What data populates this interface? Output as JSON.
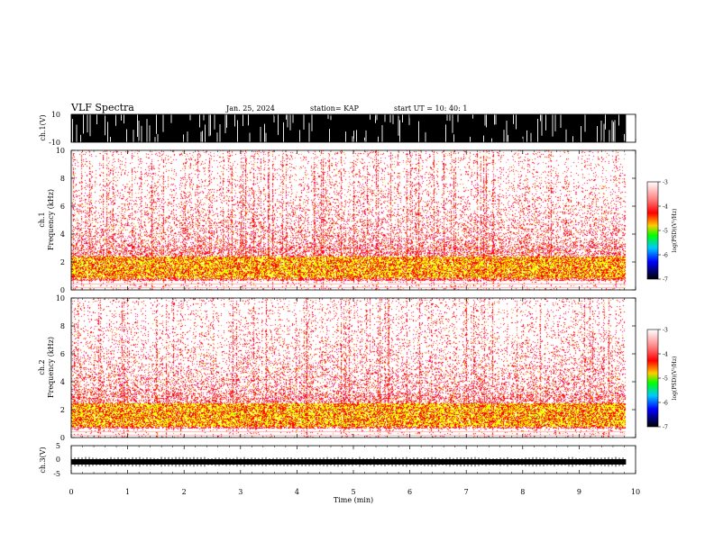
{
  "header": {
    "title": "VLF Spectra",
    "date": "Jan. 25, 2024",
    "station": "station= KAP",
    "start": "start  UT  =   10: 40: 1"
  },
  "chart_data": [
    {
      "id": "ch1-waveform",
      "type": "line",
      "ylabel": "ch.1(V)",
      "ylim": [
        -10,
        10
      ],
      "yticks": [
        "10",
        "-10"
      ],
      "description_values": "saturated broadband waveform, amplitude mostly ±10 V"
    },
    {
      "id": "ch1-spectrogram",
      "type": "heatmap",
      "ylabel_line1": "ch.1",
      "ylabel_line2": "Frequency  (kHz)",
      "ylim": [
        0,
        10
      ],
      "yticks": [
        "0",
        "2",
        "4",
        "6",
        "8",
        "10"
      ],
      "xlim": [
        0,
        10
      ],
      "band_kHz": [
        0.9,
        2.4
      ],
      "colorbar": {
        "label": "log(PSD)(V²/Hz)",
        "range": [
          -7,
          -3
        ],
        "ticks": [
          "-3",
          "-4",
          "-5",
          "-6",
          "-7"
        ]
      }
    },
    {
      "id": "ch2-spectrogram",
      "type": "heatmap",
      "ylabel_line1": "ch.2",
      "ylabel_line2": "Frequency  (kHz)",
      "ylim": [
        0,
        10
      ],
      "yticks": [
        "0",
        "2",
        "4",
        "6",
        "8",
        "10"
      ],
      "xlim": [
        0,
        10
      ],
      "band_kHz": [
        0.8,
        2.5
      ],
      "colorbar": {
        "label": "log(PSD)(V²/Hz)",
        "range": [
          -7,
          -3
        ],
        "ticks": [
          "-3",
          "-4",
          "-5",
          "-6",
          "-7"
        ]
      }
    },
    {
      "id": "ch3-waveform",
      "type": "line",
      "ylabel": "ch.3(V)",
      "ylim": [
        -5,
        5
      ],
      "yticks": [
        "5",
        "0",
        "-5"
      ],
      "level_V": -0.8
    }
  ],
  "xaxis": {
    "label": "Time  (min)",
    "range": [
      0,
      10
    ],
    "ticks": [
      "0",
      "1",
      "2",
      "3",
      "4",
      "5",
      "6",
      "7",
      "8",
      "9",
      "10"
    ],
    "data_end_min": 9.83
  },
  "colors": {
    "colormap": [
      "#ffffff",
      "#ff0000",
      "#ffff00",
      "#00ff00",
      "#00c8ff",
      "#0000ff",
      "#000000"
    ]
  }
}
